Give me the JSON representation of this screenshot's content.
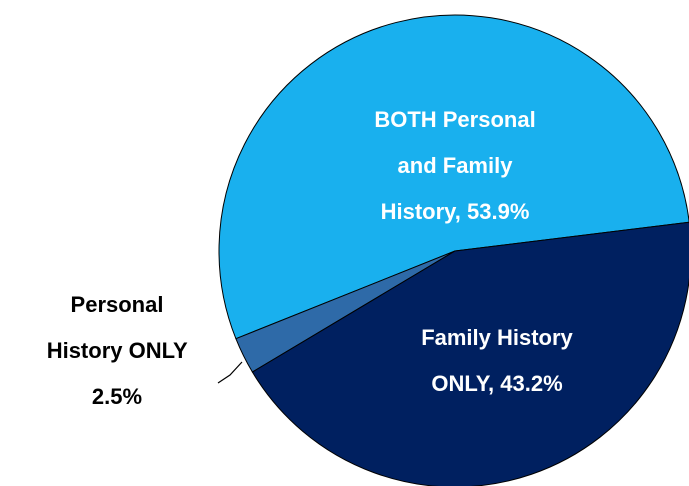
{
  "chart_data": {
    "type": "pie",
    "categories": [
      "Family History ONLY,",
      "Personal History ONLY",
      "BOTH Personal and Family History,"
    ],
    "values": [
      43.2,
      2.5,
      53.9
    ],
    "value_labels": [
      "43.2%",
      "2.5%",
      "53.9%"
    ],
    "colors": [
      "#002060",
      "#2e6aa8",
      "#19b0ee"
    ]
  }
}
